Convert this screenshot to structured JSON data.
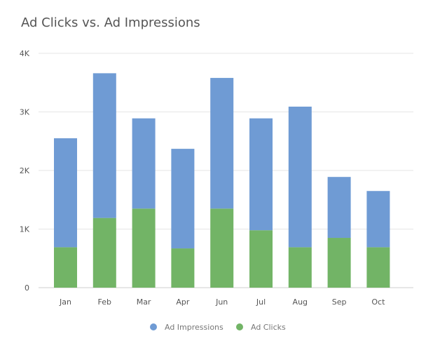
{
  "chart_data": {
    "type": "bar",
    "stacked": true,
    "title": "Ad Clicks vs. Ad Impressions",
    "xlabel": "",
    "ylabel": "",
    "categories": [
      "Jan",
      "Feb",
      "Mar",
      "Apr",
      "Jun",
      "Jul",
      "Aug",
      "Sep",
      "Oct"
    ],
    "series": [
      {
        "name": "Ad Clicks",
        "color": "#72b466",
        "values": [
          690,
          1190,
          1350,
          670,
          1350,
          980,
          690,
          850,
          690
        ]
      },
      {
        "name": "Ad Impressions",
        "color": "#6f9bd4",
        "values": [
          1860,
          2470,
          1540,
          1700,
          2230,
          1910,
          2400,
          1040,
          960
        ]
      }
    ],
    "ylim": [
      0,
      4000
    ],
    "yticks": [
      {
        "value": 0,
        "label": "0"
      },
      {
        "value": 1000,
        "label": "1K"
      },
      {
        "value": 2000,
        "label": "2K"
      },
      {
        "value": 3000,
        "label": "3K"
      },
      {
        "value": 4000,
        "label": "4K"
      }
    ],
    "grid": true,
    "legend_position": "bottom-center",
    "legend": [
      "Ad Impressions",
      "Ad Clicks"
    ]
  }
}
